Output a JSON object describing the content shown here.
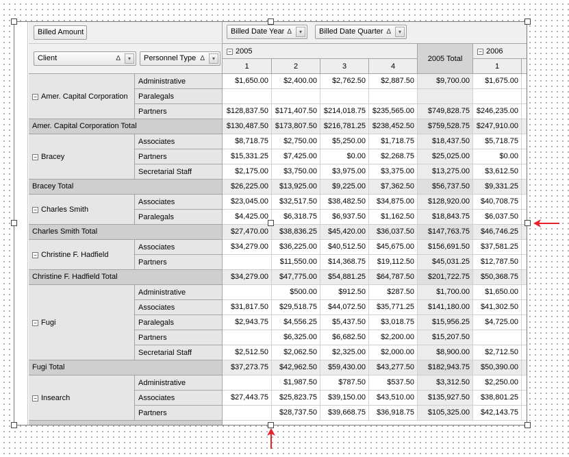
{
  "fields": {
    "data_field": "Billed Amount",
    "column_fields": [
      "Billed Date Year",
      "Billed Date Quarter"
    ],
    "row_fields": [
      "Client",
      "Personnel Type"
    ],
    "sort_glyph": "Δ",
    "dropdown_glyph": "▾"
  },
  "columns": {
    "years": [
      {
        "label": "2005",
        "quarters": [
          "1",
          "2",
          "3",
          "4"
        ],
        "total_label": "2005 Total"
      },
      {
        "label": "2006",
        "quarters": [
          "1"
        ]
      }
    ]
  },
  "rows": [
    {
      "type": "client",
      "client": "Amer. Capital Corporation",
      "items": [
        {
          "type": "Administrative",
          "values": [
            "$1,650.00",
            "$2,400.00",
            "$2,762.50",
            "$2,887.50",
            "$9,700.00",
            "$1,675.00"
          ]
        },
        {
          "type": "Paralegals",
          "values": [
            "",
            "",
            "",
            "",
            "",
            ""
          ]
        },
        {
          "type": "Partners",
          "values": [
            "$128,837.50",
            "$171,407.50",
            "$214,018.75",
            "$235,565.00",
            "$749,828.75",
            "$246,235.00"
          ]
        }
      ]
    },
    {
      "type": "total",
      "label": "Amer. Capital Corporation Total",
      "values": [
        "$130,487.50",
        "$173,807.50",
        "$216,781.25",
        "$238,452.50",
        "$759,528.75",
        "$247,910.00"
      ]
    },
    {
      "type": "client",
      "client": "Bracey",
      "items": [
        {
          "type": "Associates",
          "values": [
            "$8,718.75",
            "$2,750.00",
            "$5,250.00",
            "$1,718.75",
            "$18,437.50",
            "$5,718.75"
          ]
        },
        {
          "type": "Partners",
          "values": [
            "$15,331.25",
            "$7,425.00",
            "$0.00",
            "$2,268.75",
            "$25,025.00",
            "$0.00"
          ]
        },
        {
          "type": "Secretarial Staff",
          "values": [
            "$2,175.00",
            "$3,750.00",
            "$3,975.00",
            "$3,375.00",
            "$13,275.00",
            "$3,612.50"
          ]
        }
      ]
    },
    {
      "type": "total",
      "label": "Bracey Total",
      "values": [
        "$26,225.00",
        "$13,925.00",
        "$9,225.00",
        "$7,362.50",
        "$56,737.50",
        "$9,331.25"
      ]
    },
    {
      "type": "client",
      "client": "Charles Smith",
      "items": [
        {
          "type": "Associates",
          "values": [
            "$23,045.00",
            "$32,517.50",
            "$38,482.50",
            "$34,875.00",
            "$128,920.00",
            "$40,708.75"
          ]
        },
        {
          "type": "Paralegals",
          "values": [
            "$4,425.00",
            "$6,318.75",
            "$6,937.50",
            "$1,162.50",
            "$18,843.75",
            "$6,037.50"
          ]
        }
      ]
    },
    {
      "type": "total",
      "label": "Charles Smith Total",
      "values": [
        "$27,470.00",
        "$38,836.25",
        "$45,420.00",
        "$36,037.50",
        "$147,763.75",
        "$46,746.25"
      ]
    },
    {
      "type": "client",
      "client": "Christine F. Hadfield",
      "items": [
        {
          "type": "Associates",
          "values": [
            "$34,279.00",
            "$36,225.00",
            "$40,512.50",
            "$45,675.00",
            "$156,691.50",
            "$37,581.25"
          ]
        },
        {
          "type": "Partners",
          "values": [
            "",
            "$11,550.00",
            "$14,368.75",
            "$19,112.50",
            "$45,031.25",
            "$12,787.50"
          ]
        }
      ]
    },
    {
      "type": "total",
      "label": "Christine F. Hadfield Total",
      "values": [
        "$34,279.00",
        "$47,775.00",
        "$54,881.25",
        "$64,787.50",
        "$201,722.75",
        "$50,368.75"
      ]
    },
    {
      "type": "client",
      "client": "Fugi",
      "items": [
        {
          "type": "Administrative",
          "values": [
            "",
            "$500.00",
            "$912.50",
            "$287.50",
            "$1,700.00",
            "$1,650.00"
          ]
        },
        {
          "type": "Associates",
          "values": [
            "$31,817.50",
            "$29,518.75",
            "$44,072.50",
            "$35,771.25",
            "$141,180.00",
            "$41,302.50"
          ]
        },
        {
          "type": "Paralegals",
          "values": [
            "$2,943.75",
            "$4,556.25",
            "$5,437.50",
            "$3,018.75",
            "$15,956.25",
            "$4,725.00"
          ]
        },
        {
          "type": "Partners",
          "values": [
            "",
            "$6,325.00",
            "$6,682.50",
            "$2,200.00",
            "$15,207.50",
            ""
          ]
        },
        {
          "type": "Secretarial Staff",
          "values": [
            "$2,512.50",
            "$2,062.50",
            "$2,325.00",
            "$2,000.00",
            "$8,900.00",
            "$2,712.50"
          ]
        }
      ]
    },
    {
      "type": "total",
      "label": "Fugi Total",
      "values": [
        "$37,273.75",
        "$42,962.50",
        "$59,430.00",
        "$43,277.50",
        "$182,943.75",
        "$50,390.00"
      ]
    },
    {
      "type": "client",
      "client": "Insearch",
      "items": [
        {
          "type": "Administrative",
          "values": [
            "",
            "$1,987.50",
            "$787.50",
            "$537.50",
            "$3,312.50",
            "$2,250.00"
          ]
        },
        {
          "type": "Associates",
          "values": [
            "$27,443.75",
            "$25,823.75",
            "$39,150.00",
            "$43,510.00",
            "$135,927.50",
            "$38,801.25"
          ]
        },
        {
          "type": "Partners",
          "values": [
            "",
            "$28,737.50",
            "$39,668.75",
            "$36,918.75",
            "$105,325.00",
            "$42,143.75"
          ]
        }
      ]
    }
  ],
  "colors": {
    "accent_arrow": "#e8202a",
    "header_bg": "#e6e6e6",
    "total_bg": "#cfcfcf"
  }
}
